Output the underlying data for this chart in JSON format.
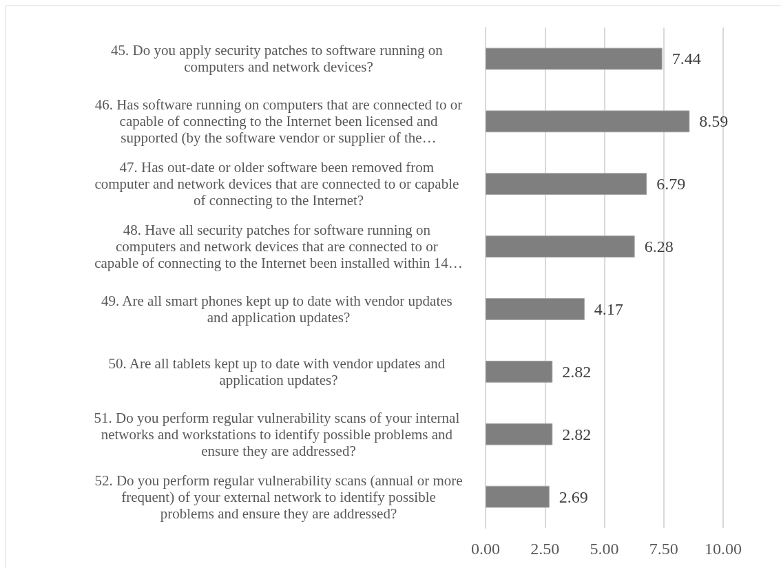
{
  "chart_data": {
    "type": "bar",
    "orientation": "horizontal",
    "categories": [
      "45. Do you apply security patches to software running on computers and network devices?",
      "46. Has software running on computers that are connected to or capable of connecting to the Internet been licensed and supported (by the software vendor or supplier of the…",
      "47. Has out-date or older software been removed from computer and network devices that are connected to or capable of connecting to the Internet?",
      "48. Have all security patches for software running on computers and network devices that are connected to or capable of connecting to the Internet been installed within 14…",
      "49. Are all smart phones kept up to date with vendor updates and application updates?",
      "50. Are all tablets kept up to date with vendor updates and application updates?",
      "51. Do you perform regular vulnerability scans of your internal networks and workstations to identify possible problems and ensure they are addressed?",
      "52. Do you perform regular vulnerability scans (annual or more frequent) of your external network to identify possible problems and ensure they are addressed?"
    ],
    "values": [
      7.44,
      8.59,
      6.79,
      6.28,
      4.17,
      2.82,
      2.82,
      2.69
    ],
    "color": "#7f7f7f",
    "xlim": [
      0,
      10
    ],
    "xticks": [
      {
        "value": 0,
        "label": "0.00"
      },
      {
        "value": 2.5,
        "label": "2.50"
      },
      {
        "value": 5,
        "label": "5.00"
      },
      {
        "value": 7.5,
        "label": "7.50"
      },
      {
        "value": 10,
        "label": "10.00"
      }
    ],
    "grid": "x",
    "data_labels": true
  }
}
